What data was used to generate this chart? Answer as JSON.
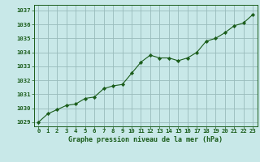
{
  "x": [
    0,
    1,
    2,
    3,
    4,
    5,
    6,
    7,
    8,
    9,
    10,
    11,
    12,
    13,
    14,
    15,
    16,
    17,
    18,
    19,
    20,
    21,
    22,
    23
  ],
  "y": [
    1029.0,
    1029.6,
    1029.9,
    1030.2,
    1030.3,
    1030.7,
    1030.8,
    1031.4,
    1031.6,
    1031.7,
    1032.5,
    1033.3,
    1033.8,
    1033.6,
    1033.6,
    1033.4,
    1033.6,
    1034.0,
    1034.8,
    1035.0,
    1035.4,
    1035.9,
    1036.1,
    1036.7
  ],
  "bg_color": "#c8e8e8",
  "grid_color": "#99bbbb",
  "line_color": "#1a5c1a",
  "marker_color": "#1a5c1a",
  "xlabel": "Graphe pression niveau de la mer (hPa)",
  "xlabel_color": "#1a5c1a",
  "tick_color": "#1a5c1a",
  "ylim_min": 1028.7,
  "ylim_max": 1037.4,
  "xlim_min": -0.5,
  "xlim_max": 23.5,
  "yticks": [
    1029,
    1030,
    1031,
    1032,
    1033,
    1034,
    1035,
    1036,
    1037
  ],
  "xticks": [
    0,
    1,
    2,
    3,
    4,
    5,
    6,
    7,
    8,
    9,
    10,
    11,
    12,
    13,
    14,
    15,
    16,
    17,
    18,
    19,
    20,
    21,
    22,
    23
  ]
}
